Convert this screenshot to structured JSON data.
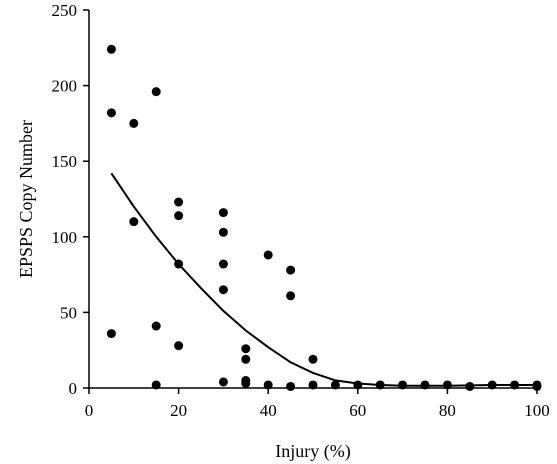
{
  "chart_data": {
    "type": "scatter",
    "xlabel": "Injury (%)",
    "ylabel": "EPSPS Copy Number",
    "xlim": [
      0,
      100
    ],
    "ylim": [
      0,
      250
    ],
    "xticks": [
      0,
      20,
      40,
      60,
      80,
      100
    ],
    "yticks": [
      0,
      50,
      100,
      150,
      200,
      250
    ],
    "grid": false,
    "series": [
      {
        "type": "scatter",
        "points": [
          {
            "x": 5,
            "y": 224
          },
          {
            "x": 5,
            "y": 182
          },
          {
            "x": 5,
            "y": 36
          },
          {
            "x": 10,
            "y": 175
          },
          {
            "x": 10,
            "y": 110
          },
          {
            "x": 15,
            "y": 196
          },
          {
            "x": 15,
            "y": 41
          },
          {
            "x": 15,
            "y": 2
          },
          {
            "x": 20,
            "y": 123
          },
          {
            "x": 20,
            "y": 114
          },
          {
            "x": 20,
            "y": 82
          },
          {
            "x": 20,
            "y": 28
          },
          {
            "x": 30,
            "y": 116
          },
          {
            "x": 30,
            "y": 103
          },
          {
            "x": 30,
            "y": 82
          },
          {
            "x": 30,
            "y": 65
          },
          {
            "x": 30,
            "y": 4
          },
          {
            "x": 35,
            "y": 26
          },
          {
            "x": 35,
            "y": 19
          },
          {
            "x": 35,
            "y": 5
          },
          {
            "x": 35,
            "y": 3
          },
          {
            "x": 40,
            "y": 88
          },
          {
            "x": 40,
            "y": 2
          },
          {
            "x": 45,
            "y": 78
          },
          {
            "x": 45,
            "y": 61
          },
          {
            "x": 45,
            "y": 1
          },
          {
            "x": 50,
            "y": 19
          },
          {
            "x": 50,
            "y": 2
          },
          {
            "x": 55,
            "y": 2
          },
          {
            "x": 60,
            "y": 2
          },
          {
            "x": 65,
            "y": 2
          },
          {
            "x": 70,
            "y": 2
          },
          {
            "x": 75,
            "y": 2
          },
          {
            "x": 80,
            "y": 2
          },
          {
            "x": 85,
            "y": 1
          },
          {
            "x": 90,
            "y": 2
          },
          {
            "x": 95,
            "y": 2
          },
          {
            "x": 100,
            "y": 2
          },
          {
            "x": 100,
            "y": 1
          }
        ]
      },
      {
        "type": "line",
        "points": [
          {
            "x": 5,
            "y": 142
          },
          {
            "x": 10,
            "y": 120
          },
          {
            "x": 15,
            "y": 100
          },
          {
            "x": 20,
            "y": 82
          },
          {
            "x": 25,
            "y": 66
          },
          {
            "x": 30,
            "y": 51
          },
          {
            "x": 35,
            "y": 38
          },
          {
            "x": 40,
            "y": 27
          },
          {
            "x": 45,
            "y": 17
          },
          {
            "x": 50,
            "y": 10
          },
          {
            "x": 55,
            "y": 5
          },
          {
            "x": 60,
            "y": 3
          },
          {
            "x": 65,
            "y": 2
          },
          {
            "x": 70,
            "y": 1.5
          },
          {
            "x": 80,
            "y": 1.5
          },
          {
            "x": 90,
            "y": 2
          },
          {
            "x": 100,
            "y": 2
          }
        ]
      }
    ]
  }
}
